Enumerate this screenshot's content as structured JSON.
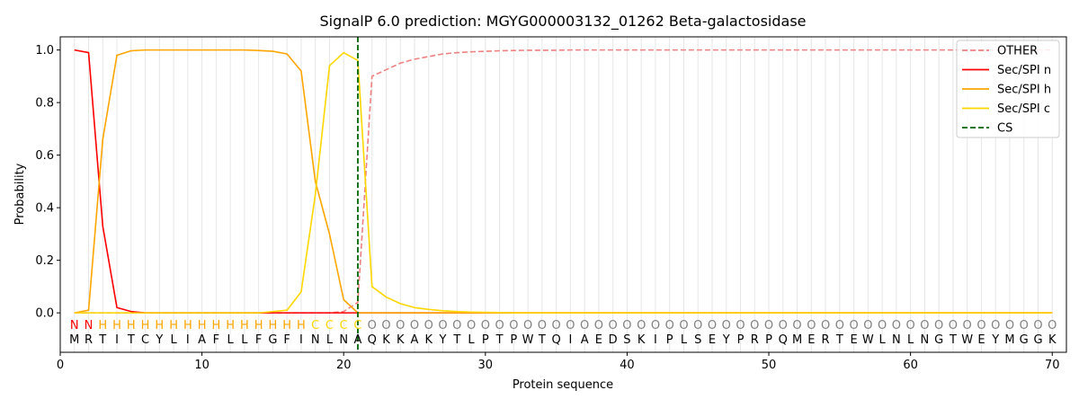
{
  "chart_data": {
    "type": "line",
    "title": "SignalP 6.0 prediction: MGYG000003132_01262 Beta-galactosidase",
    "xlabel": "Protein sequence",
    "ylabel": "Probability",
    "xlim": [
      0,
      71
    ],
    "ylim": [
      -0.15,
      1.05
    ],
    "x_ticks": [
      0,
      10,
      20,
      30,
      40,
      50,
      60,
      70
    ],
    "y_ticks": [
      0.0,
      0.2,
      0.4,
      0.6,
      0.8,
      1.0
    ],
    "grid": "vertical lines at each residue",
    "legend_position": "top-right",
    "sequence": [
      "M",
      "R",
      "T",
      "I",
      "T",
      "C",
      "Y",
      "L",
      "I",
      "A",
      "F",
      "L",
      "L",
      "F",
      "G",
      "F",
      "I",
      "N",
      "L",
      "N",
      "A",
      "Q",
      "K",
      "K",
      "A",
      "K",
      "Y",
      "T",
      "L",
      "P",
      "T",
      "P",
      "W",
      "T",
      "Q",
      "I",
      "A",
      "E",
      "D",
      "S",
      "K",
      "I",
      "P",
      "L",
      "S",
      "E",
      "Y",
      "P",
      "R",
      "P",
      "Q",
      "M",
      "E",
      "R",
      "T",
      "E",
      "W",
      "L",
      "N",
      "L",
      "N",
      "G",
      "T",
      "W",
      "E",
      "Y",
      "M",
      "G",
      "G",
      "K"
    ],
    "region_labels": [
      "N",
      "N",
      "H",
      "H",
      "H",
      "H",
      "H",
      "H",
      "H",
      "H",
      "H",
      "H",
      "H",
      "H",
      "H",
      "H",
      "H",
      "C",
      "C",
      "C",
      "C",
      "O",
      "O",
      "O",
      "O",
      "O",
      "O",
      "O",
      "O",
      "O",
      "O",
      "O",
      "O",
      "O",
      "O",
      "O",
      "O",
      "O",
      "O",
      "O",
      "O",
      "O",
      "O",
      "O",
      "O",
      "O",
      "O",
      "O",
      "O",
      "O",
      "O",
      "O",
      "O",
      "O",
      "O",
      "O",
      "O",
      "O",
      "O",
      "O",
      "O",
      "O",
      "O",
      "O",
      "O",
      "O",
      "O",
      "O",
      "O",
      "O"
    ],
    "region_colors": {
      "N": "#ff0000",
      "H": "#ffa500",
      "C": "#ffd700",
      "O": "#808080"
    },
    "series": [
      {
        "name": "OTHER",
        "color": "#f08080",
        "dash": "dashed",
        "values": [
          0.0,
          0.0,
          0.0,
          0.0,
          0.0,
          0.0,
          0.0,
          0.0,
          0.0,
          0.0,
          0.0,
          0.0,
          0.0,
          0.0,
          0.0,
          0.0,
          0.0,
          0.0,
          0.0,
          0.005,
          0.04,
          0.9,
          0.925,
          0.95,
          0.965,
          0.975,
          0.985,
          0.99,
          0.993,
          0.995,
          0.997,
          0.998,
          0.999,
          0.999,
          0.999,
          1.0,
          1.0,
          1.0,
          1.0,
          1.0,
          1.0,
          1.0,
          1.0,
          1.0,
          1.0,
          1.0,
          1.0,
          1.0,
          1.0,
          1.0,
          1.0,
          1.0,
          1.0,
          1.0,
          1.0,
          1.0,
          1.0,
          1.0,
          1.0,
          1.0,
          1.0,
          1.0,
          1.0,
          1.0,
          1.0,
          1.0,
          1.0,
          1.0,
          1.0,
          1.0
        ]
      },
      {
        "name": "Sec/SPI n",
        "color": "#ff0000",
        "dash": "solid",
        "values": [
          1.0,
          0.99,
          0.33,
          0.02,
          0.005,
          0.0,
          0.0,
          0.0,
          0.0,
          0.0,
          0.0,
          0.0,
          0.0,
          0.0,
          0.0,
          0.0,
          0.0,
          0.0,
          0.0,
          0.0,
          0.0,
          0.0,
          0.0,
          0.0,
          0.0,
          0.0,
          0.0,
          0.0,
          0.0,
          0.0,
          0.0,
          0.0,
          0.0,
          0.0,
          0.0,
          0.0,
          0.0,
          0.0,
          0.0,
          0.0,
          0.0,
          0.0,
          0.0,
          0.0,
          0.0,
          0.0,
          0.0,
          0.0,
          0.0,
          0.0,
          0.0,
          0.0,
          0.0,
          0.0,
          0.0,
          0.0,
          0.0,
          0.0,
          0.0,
          0.0,
          0.0,
          0.0,
          0.0,
          0.0,
          0.0,
          0.0,
          0.0,
          0.0,
          0.0,
          0.0
        ]
      },
      {
        "name": "Sec/SPI h",
        "color": "#ffa500",
        "dash": "solid",
        "values": [
          0.0,
          0.01,
          0.66,
          0.98,
          0.997,
          1.0,
          1.0,
          1.0,
          1.0,
          1.0,
          1.0,
          1.0,
          1.0,
          0.998,
          0.995,
          0.985,
          0.92,
          0.5,
          0.3,
          0.05,
          0.0,
          0.0,
          0.0,
          0.0,
          0.0,
          0.0,
          0.0,
          0.0,
          0.0,
          0.0,
          0.0,
          0.0,
          0.0,
          0.0,
          0.0,
          0.0,
          0.0,
          0.0,
          0.0,
          0.0,
          0.0,
          0.0,
          0.0,
          0.0,
          0.0,
          0.0,
          0.0,
          0.0,
          0.0,
          0.0,
          0.0,
          0.0,
          0.0,
          0.0,
          0.0,
          0.0,
          0.0,
          0.0,
          0.0,
          0.0,
          0.0,
          0.0,
          0.0,
          0.0,
          0.0,
          0.0,
          0.0,
          0.0,
          0.0,
          0.0
        ]
      },
      {
        "name": "Sec/SPI c",
        "color": "#ffd700",
        "dash": "solid",
        "values": [
          0.0,
          0.0,
          0.0,
          0.0,
          0.0,
          0.0,
          0.0,
          0.0,
          0.0,
          0.0,
          0.0,
          0.0,
          0.0,
          0.0,
          0.005,
          0.01,
          0.08,
          0.45,
          0.94,
          0.99,
          0.96,
          0.1,
          0.06,
          0.035,
          0.02,
          0.013,
          0.008,
          0.005,
          0.003,
          0.002,
          0.001,
          0.0,
          0.0,
          0.0,
          0.0,
          0.0,
          0.0,
          0.0,
          0.0,
          0.0,
          0.0,
          0.0,
          0.0,
          0.0,
          0.0,
          0.0,
          0.0,
          0.0,
          0.0,
          0.0,
          0.0,
          0.0,
          0.0,
          0.0,
          0.0,
          0.0,
          0.0,
          0.0,
          0.0,
          0.0,
          0.0,
          0.0,
          0.0,
          0.0,
          0.0,
          0.0,
          0.0,
          0.0,
          0.0,
          0.0
        ]
      }
    ],
    "cleavage_site": {
      "name": "CS",
      "x": 21,
      "color": "#006400",
      "dash": "dashed"
    }
  }
}
